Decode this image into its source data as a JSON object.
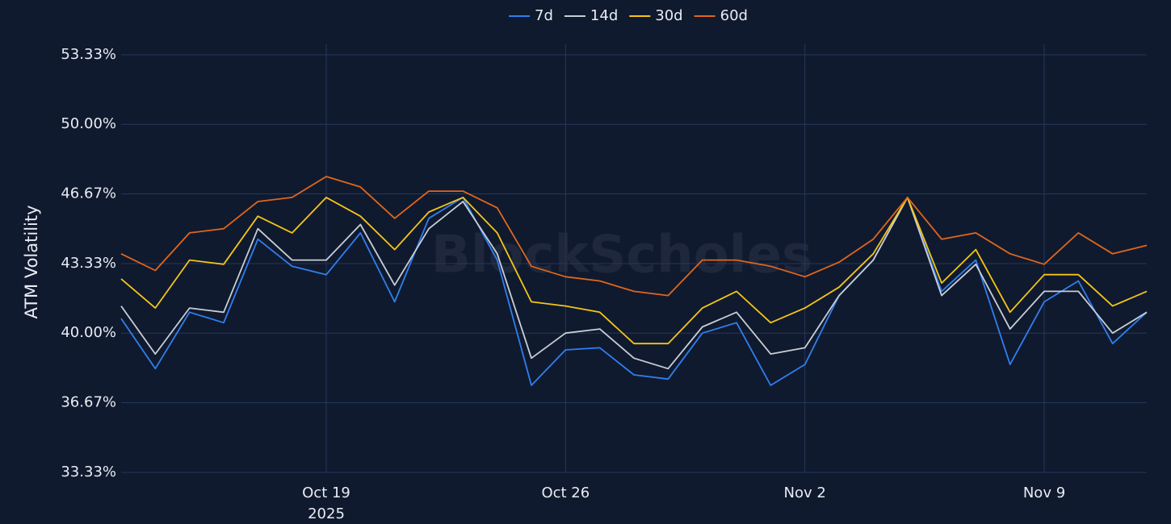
{
  "chart_data": {
    "type": "line",
    "y_label": "ATM Volatility",
    "watermark": "BlockScholes",
    "x": [
      "2025-10-13",
      "2025-10-14",
      "2025-10-15",
      "2025-10-16",
      "2025-10-17",
      "2025-10-18",
      "2025-10-19",
      "2025-10-20",
      "2025-10-21",
      "2025-10-22",
      "2025-10-23",
      "2025-10-24",
      "2025-10-25",
      "2025-10-26",
      "2025-10-27",
      "2025-10-28",
      "2025-10-29",
      "2025-10-30",
      "2025-10-31",
      "2025-11-01",
      "2025-11-02",
      "2025-11-03",
      "2025-11-04",
      "2025-11-05",
      "2025-11-06",
      "2025-11-07",
      "2025-11-08",
      "2025-11-09",
      "2025-11-10",
      "2025-11-11",
      "2025-11-12"
    ],
    "series": [
      {
        "name": "7d",
        "color": "#2f7ff0",
        "values": [
          40.7,
          38.3,
          41.0,
          40.5,
          44.5,
          43.2,
          42.8,
          44.8,
          41.5,
          45.5,
          46.5,
          43.5,
          37.5,
          39.2,
          39.3,
          38.0,
          37.8,
          40.0,
          40.5,
          37.5,
          38.5,
          41.8,
          43.5,
          46.5,
          42.0,
          43.5,
          38.5,
          41.5,
          42.5,
          39.5,
          41.0
        ]
      },
      {
        "name": "14d",
        "color": "#c9cdd6",
        "values": [
          41.3,
          39.0,
          41.2,
          41.0,
          45.0,
          43.5,
          43.5,
          45.2,
          42.3,
          45.0,
          46.3,
          43.8,
          38.8,
          40.0,
          40.2,
          38.8,
          38.3,
          40.3,
          41.0,
          39.0,
          39.3,
          41.8,
          43.5,
          46.5,
          41.8,
          43.3,
          40.2,
          42.0,
          42.0,
          40.0,
          41.0
        ]
      },
      {
        "name": "30d",
        "color": "#f5c518",
        "values": [
          42.6,
          41.2,
          43.5,
          43.3,
          45.6,
          44.8,
          46.5,
          45.6,
          44.0,
          45.8,
          46.5,
          44.8,
          41.5,
          41.3,
          41.0,
          39.5,
          39.5,
          41.2,
          42.0,
          40.5,
          41.2,
          42.2,
          43.8,
          46.5,
          42.4,
          44.0,
          41.0,
          42.8,
          42.8,
          41.3,
          42.0
        ]
      },
      {
        "name": "60d",
        "color": "#e0661c",
        "values": [
          43.8,
          43.0,
          44.8,
          45.0,
          46.3,
          46.5,
          47.5,
          47.0,
          45.5,
          46.8,
          46.8,
          46.0,
          43.2,
          42.7,
          42.5,
          42.0,
          41.8,
          43.5,
          43.5,
          43.2,
          42.7,
          43.4,
          44.5,
          46.5,
          44.5,
          44.8,
          43.8,
          43.3,
          44.8,
          43.8,
          44.2
        ]
      }
    ],
    "xlim": [
      "2025-10-13",
      "2025-11-12"
    ],
    "xticks": [
      {
        "value": "2025-10-19",
        "label": "Oct 19",
        "sublabel": "2025"
      },
      {
        "value": "2025-10-26",
        "label": "Oct 26"
      },
      {
        "value": "2025-11-02",
        "label": "Nov 2"
      },
      {
        "value": "2025-11-09",
        "label": "Nov 9"
      }
    ],
    "ylim": [
      33.33,
      53.83
    ],
    "yticks": [
      {
        "value": 33.33,
        "label": "33.33%"
      },
      {
        "value": 36.67,
        "label": "36.67%"
      },
      {
        "value": 40.0,
        "label": "40.00%"
      },
      {
        "value": 43.33,
        "label": "43.33%"
      },
      {
        "value": 46.67,
        "label": "46.67%"
      },
      {
        "value": 50.0,
        "label": "50.00%"
      },
      {
        "value": 53.33,
        "label": "53.33%"
      }
    ],
    "grid": true,
    "legend": "top"
  }
}
